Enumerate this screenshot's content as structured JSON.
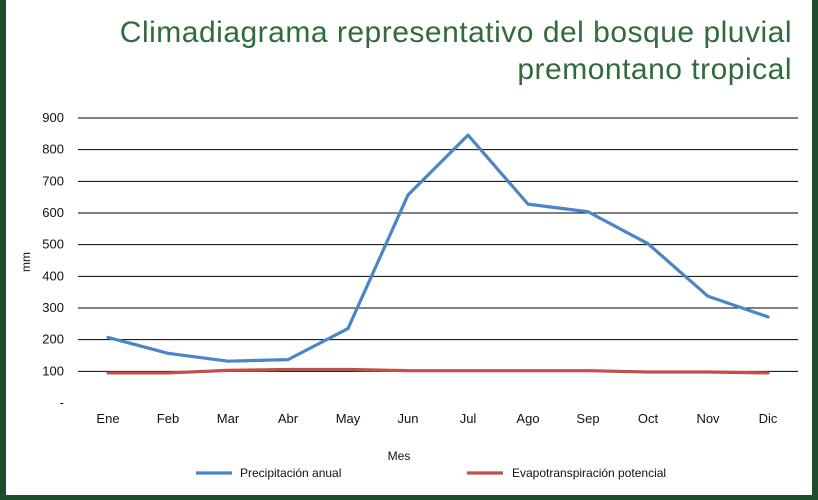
{
  "chart_data": {
    "type": "line",
    "title_lines": [
      "Climadiagrama representativo del bosque pluvial",
      "premontano tropical"
    ],
    "xlabel": "Mes",
    "ylabel": "mm",
    "categories": [
      "Ene",
      "Feb",
      "Mar",
      "Abr",
      "May",
      "Jun",
      "Jul",
      "Ago",
      "Sep",
      "Oct",
      "Nov",
      "Dic"
    ],
    "y_ticks": [
      "-",
      "100",
      "200",
      "300",
      "400",
      "500",
      "600",
      "700",
      "800",
      "900"
    ],
    "ylim": [
      0,
      900
    ],
    "grid": true,
    "legend_position": "bottom",
    "series": [
      {
        "name": "Precipitación anual",
        "color": "#4a86c5",
        "values": [
          207,
          157,
          132,
          137,
          235,
          657,
          846,
          628,
          604,
          503,
          337,
          272
        ]
      },
      {
        "name": "Evapotranspiración potencial",
        "color": "#c0504d",
        "values": [
          95,
          95,
          103,
          106,
          106,
          102,
          102,
          102,
          102,
          98,
          98,
          95
        ]
      }
    ]
  },
  "colors": {
    "frame": "#1e4d2b",
    "title": "#2f6b3b",
    "grid": "#000000"
  }
}
